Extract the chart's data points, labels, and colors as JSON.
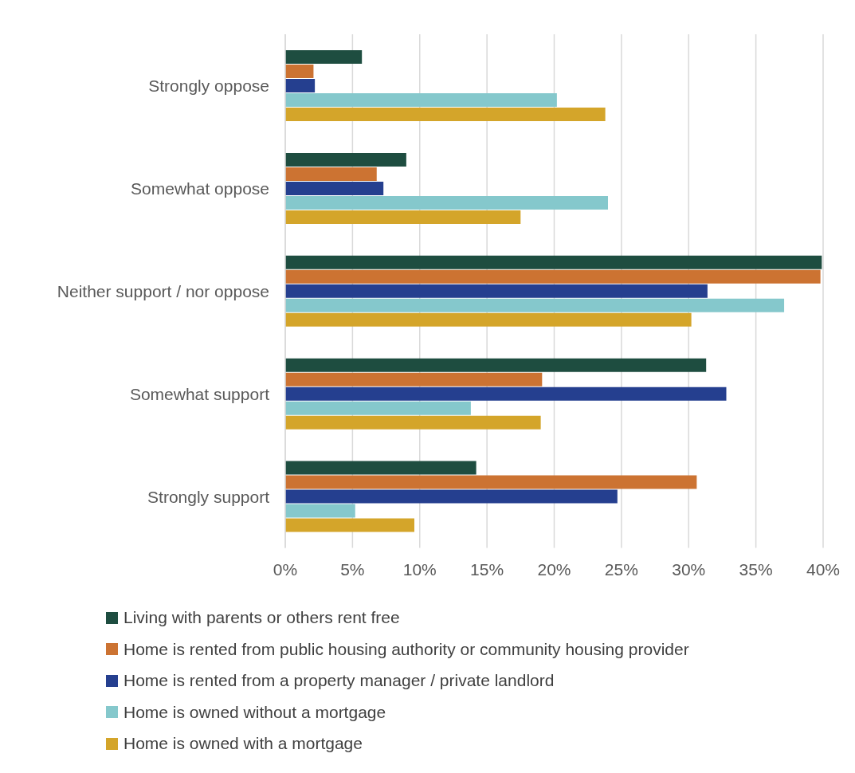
{
  "chart_data": {
    "type": "bar",
    "orientation": "horizontal",
    "categories": [
      "Strongly oppose",
      "Somewhat oppose",
      "Neither support / nor oppose",
      "Somewhat support",
      "Strongly support"
    ],
    "series": [
      {
        "name": "Living with parents or others rent free",
        "color": "#1e4d40",
        "values": [
          5.7,
          9.0,
          39.9,
          31.3,
          14.2
        ]
      },
      {
        "name": "Home is rented from public housing authority or community housing provider",
        "color": "#cc7332",
        "values": [
          2.1,
          6.8,
          39.8,
          19.1,
          30.6
        ]
      },
      {
        "name": "Home is rented from a property manager / private landlord",
        "color": "#253f8f",
        "values": [
          2.2,
          7.3,
          31.4,
          32.8,
          24.7
        ]
      },
      {
        "name": "Home is owned without a mortgage",
        "color": "#85c8cc",
        "values": [
          20.2,
          24.0,
          37.1,
          13.8,
          5.2
        ]
      },
      {
        "name": "Home is owned with a mortgage",
        "color": "#d4a52a",
        "values": [
          23.8,
          17.5,
          30.2,
          19.0,
          9.6
        ]
      }
    ],
    "xlim": [
      0,
      40
    ],
    "xticks": [
      {
        "value": 0,
        "label": "0%"
      },
      {
        "value": 5,
        "label": "5%"
      },
      {
        "value": 10,
        "label": "10%"
      },
      {
        "value": 15,
        "label": "15%"
      },
      {
        "value": 20,
        "label": "20%"
      },
      {
        "value": 25,
        "label": "25%"
      },
      {
        "value": 30,
        "label": "30%"
      },
      {
        "value": 35,
        "label": "35%"
      },
      {
        "value": 40,
        "label": "40%"
      }
    ],
    "grid": "x",
    "legend": "bottom"
  }
}
